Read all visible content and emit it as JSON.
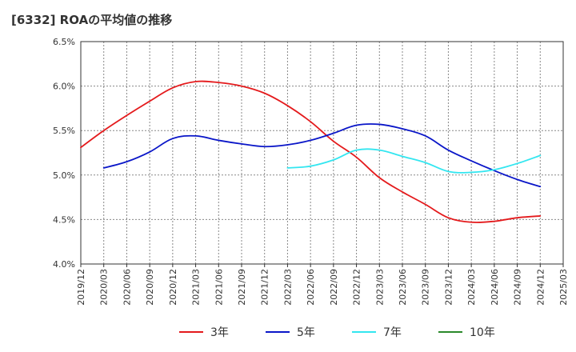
{
  "title": "[6332]  ROAの平均値の推移",
  "chart_data": {
    "type": "line",
    "title": "[6332]  ROAの平均値の推移",
    "xlabel": "",
    "ylabel": "",
    "x_ticks": [
      "2019/12",
      "2020/03",
      "2020/06",
      "2020/09",
      "2020/12",
      "2021/03",
      "2021/06",
      "2021/09",
      "2021/12",
      "2022/03",
      "2022/06",
      "2022/09",
      "2022/12",
      "2023/03",
      "2023/06",
      "2023/09",
      "2023/12",
      "2024/03",
      "2024/06",
      "2024/09",
      "2024/12",
      "2025/03"
    ],
    "y_ticks": [
      "4.0%",
      "4.5%",
      "5.0%",
      "5.5%",
      "6.0%",
      "6.5%"
    ],
    "ylim": [
      4.0,
      6.5
    ],
    "grid": true,
    "legend_position": "bottom",
    "series": [
      {
        "name": "3年",
        "color": "#e41a1c",
        "points": [
          [
            "2019/12",
            5.31
          ],
          [
            "2020/03",
            5.5
          ],
          [
            "2020/06",
            5.67
          ],
          [
            "2020/09",
            5.83
          ],
          [
            "2020/12",
            5.98
          ],
          [
            "2021/03",
            6.05
          ],
          [
            "2021/06",
            6.04
          ],
          [
            "2021/09",
            6.0
          ],
          [
            "2021/12",
            5.92
          ],
          [
            "2022/03",
            5.78
          ],
          [
            "2022/06",
            5.6
          ],
          [
            "2022/09",
            5.38
          ],
          [
            "2022/12",
            5.2
          ],
          [
            "2023/03",
            4.97
          ],
          [
            "2023/06",
            4.81
          ],
          [
            "2023/09",
            4.67
          ],
          [
            "2023/12",
            4.52
          ],
          [
            "2024/03",
            4.47
          ],
          [
            "2024/06",
            4.48
          ],
          [
            "2024/09",
            4.52
          ],
          [
            "2024/12",
            4.54
          ]
        ]
      },
      {
        "name": "5年",
        "color": "#0a16c8",
        "points": [
          [
            "2020/03",
            5.08
          ],
          [
            "2020/06",
            5.15
          ],
          [
            "2020/09",
            5.26
          ],
          [
            "2020/12",
            5.41
          ],
          [
            "2021/03",
            5.44
          ],
          [
            "2021/06",
            5.39
          ],
          [
            "2021/09",
            5.35
          ],
          [
            "2021/12",
            5.32
          ],
          [
            "2022/03",
            5.34
          ],
          [
            "2022/06",
            5.39
          ],
          [
            "2022/09",
            5.47
          ],
          [
            "2022/12",
            5.56
          ],
          [
            "2023/03",
            5.57
          ],
          [
            "2023/06",
            5.52
          ],
          [
            "2023/09",
            5.44
          ],
          [
            "2023/12",
            5.28
          ],
          [
            "2024/03",
            5.16
          ],
          [
            "2024/06",
            5.05
          ],
          [
            "2024/09",
            4.95
          ],
          [
            "2024/12",
            4.87
          ]
        ]
      },
      {
        "name": "7年",
        "color": "#33e6f0",
        "points": [
          [
            "2022/03",
            5.08
          ],
          [
            "2022/06",
            5.1
          ],
          [
            "2022/09",
            5.17
          ],
          [
            "2022/12",
            5.28
          ],
          [
            "2023/03",
            5.28
          ],
          [
            "2023/06",
            5.21
          ],
          [
            "2023/09",
            5.14
          ],
          [
            "2023/12",
            5.04
          ],
          [
            "2024/03",
            5.03
          ],
          [
            "2024/06",
            5.06
          ],
          [
            "2024/09",
            5.13
          ],
          [
            "2024/12",
            5.22
          ]
        ]
      },
      {
        "name": "10年",
        "color": "#2a8a2a",
        "points": []
      }
    ]
  }
}
